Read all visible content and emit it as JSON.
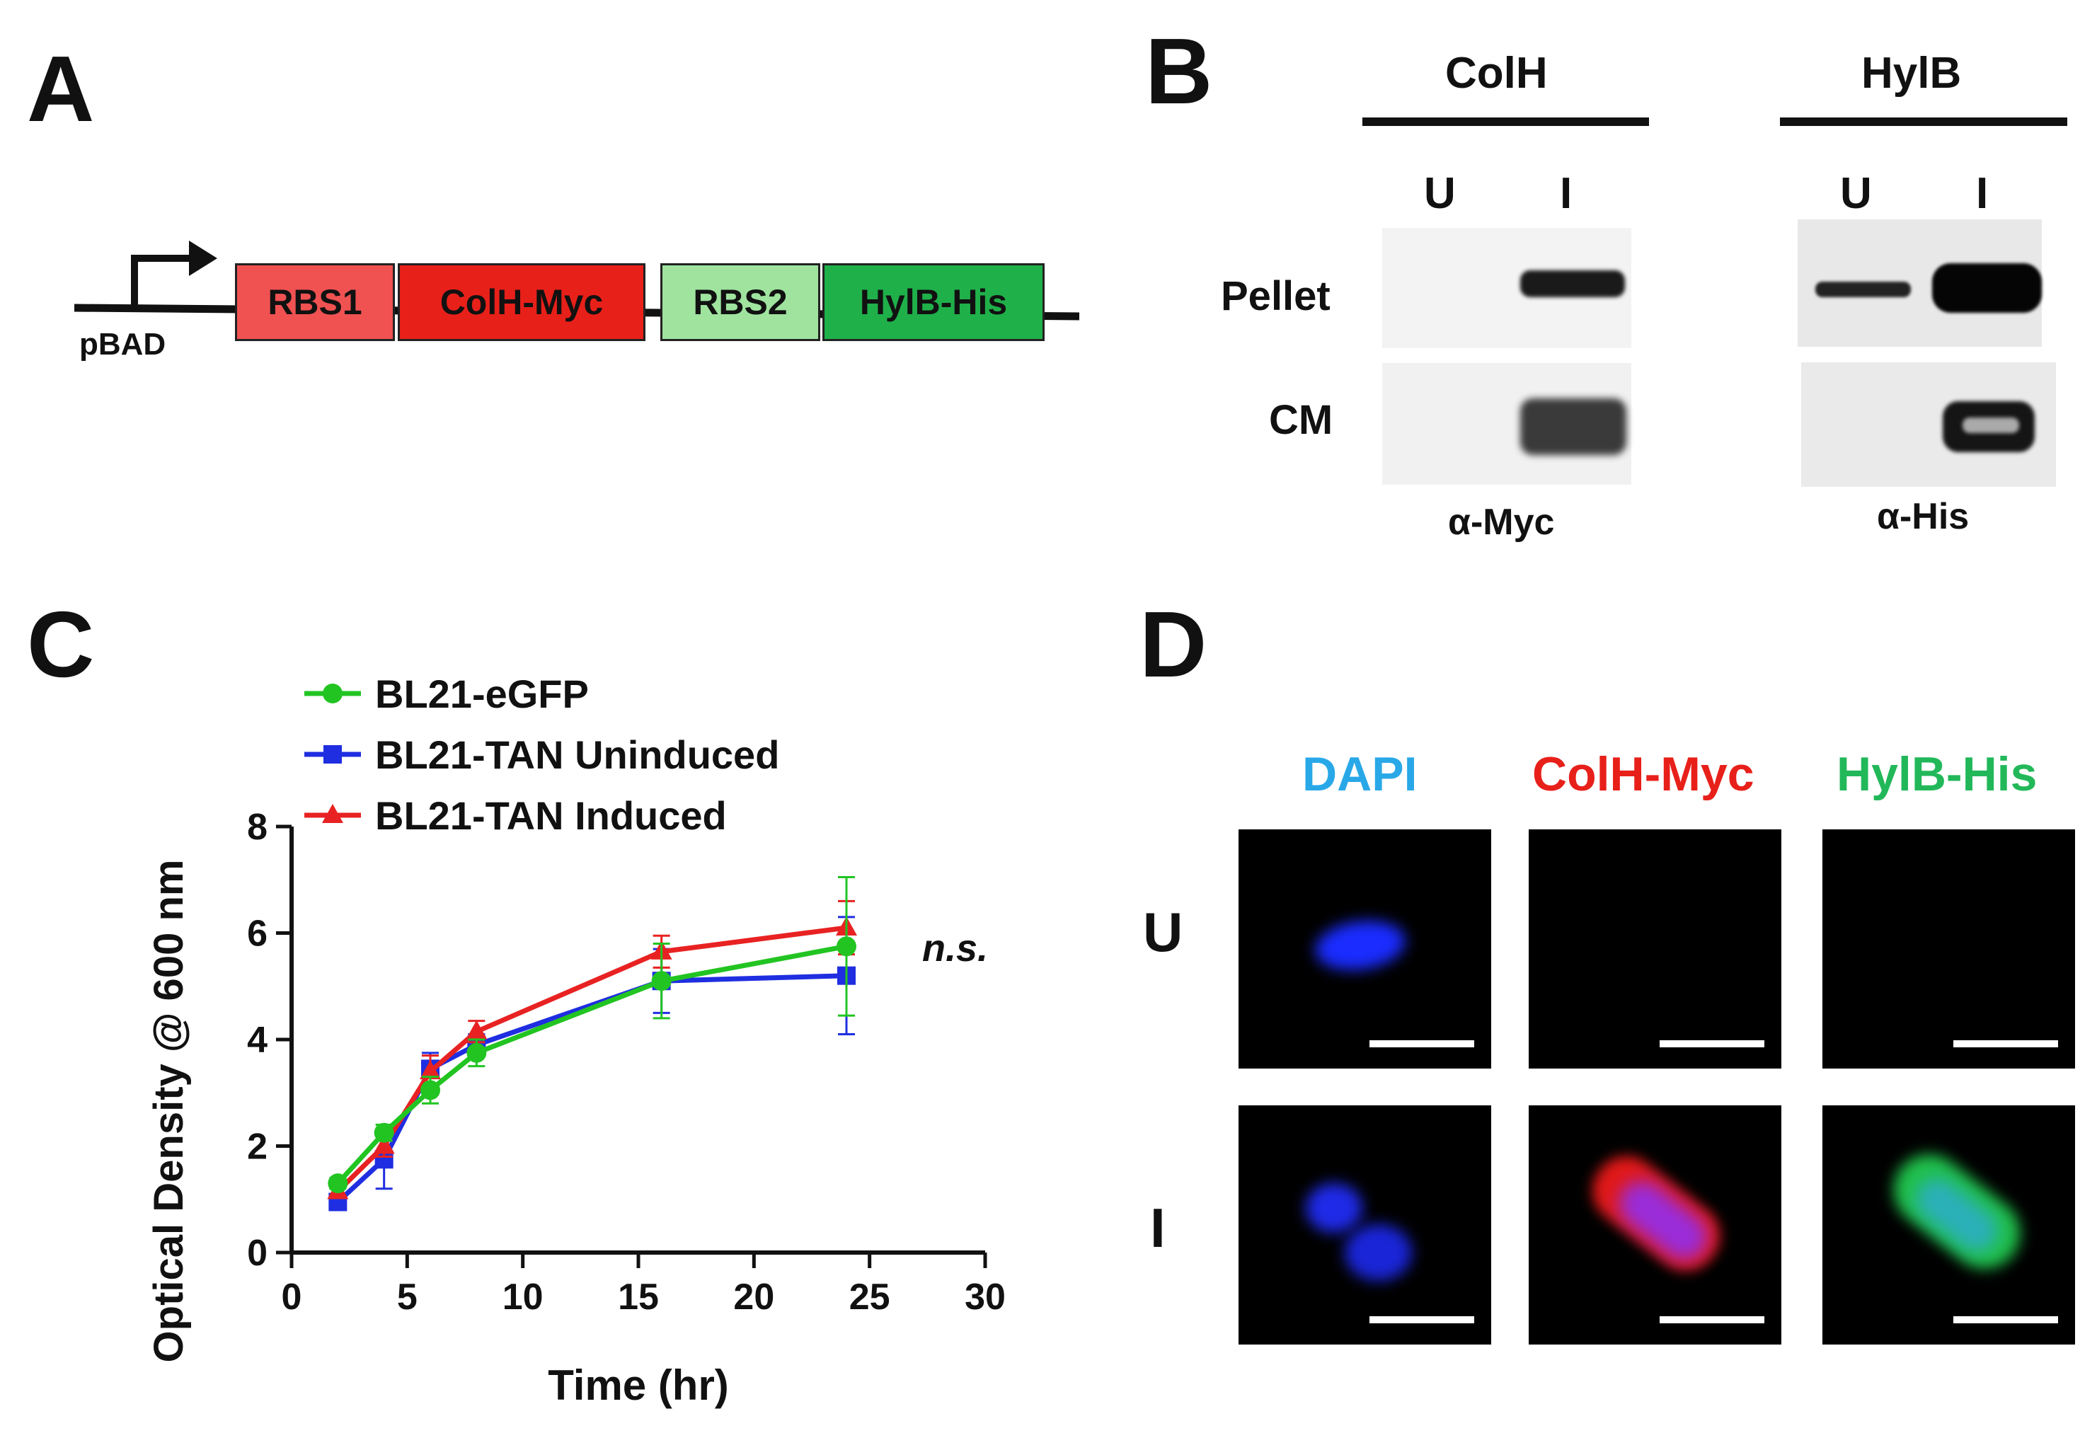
{
  "panels": {
    "A": {
      "letter": "A",
      "promoter_label": "pBAD",
      "segments": [
        {
          "label": "RBS1",
          "color": "#f05252"
        },
        {
          "label": "ColH-Myc",
          "color": "#e8201a"
        },
        {
          "label": "RBS2",
          "color": "#9fe39f"
        },
        {
          "label": "HylB-His",
          "color": "#1fb04a"
        }
      ]
    },
    "B": {
      "letter": "B",
      "groups": [
        {
          "title": "ColH",
          "lanes": [
            "U",
            "I"
          ],
          "antibody": "α-Myc"
        },
        {
          "title": "HylB",
          "lanes": [
            "U",
            "I"
          ],
          "antibody": "α-His"
        }
      ],
      "row_labels": [
        "Pellet",
        "CM"
      ]
    },
    "C": {
      "letter": "C",
      "annotation": "n.s."
    },
    "D": {
      "letter": "D",
      "columns": [
        {
          "label": "DAPI",
          "color": "#29a8e8"
        },
        {
          "label": "ColH-Myc",
          "color": "#e8201a"
        },
        {
          "label": "HylB-His",
          "color": "#22b85a"
        }
      ],
      "rows": [
        "U",
        "I"
      ]
    }
  },
  "chart_data": {
    "type": "line",
    "xlabel": "Time (hr)",
    "ylabel": "Optical  Density @ 600 nm",
    "xlim": [
      0,
      30
    ],
    "ylim": [
      0,
      8
    ],
    "xticks": [
      0,
      5,
      10,
      15,
      20,
      25,
      30
    ],
    "yticks": [
      0,
      2,
      4,
      6,
      8
    ],
    "grid": false,
    "legend_position": "top-left",
    "x": [
      2,
      4,
      6,
      8,
      16,
      24
    ],
    "series": [
      {
        "name": "BL21-eGFP",
        "color": "#22c422",
        "marker": "circle",
        "values": [
          1.3,
          2.25,
          3.05,
          3.75,
          5.1,
          5.75
        ],
        "errors": [
          0.1,
          0.15,
          0.25,
          0.25,
          0.7,
          1.3
        ]
      },
      {
        "name": "BL21-TAN Uninduced",
        "color": "#1f2ee0",
        "marker": "square",
        "values": [
          0.95,
          1.75,
          3.45,
          3.9,
          5.1,
          5.2
        ],
        "errors": [
          0.1,
          0.55,
          0.3,
          0.2,
          0.6,
          1.1
        ]
      },
      {
        "name": "BL21-TAN Induced",
        "color": "#e82222",
        "marker": "triangle",
        "values": [
          1.15,
          2.0,
          3.4,
          4.15,
          5.65,
          6.1
        ],
        "errors": [
          0.1,
          0.2,
          0.3,
          0.2,
          0.3,
          0.5
        ]
      }
    ]
  }
}
